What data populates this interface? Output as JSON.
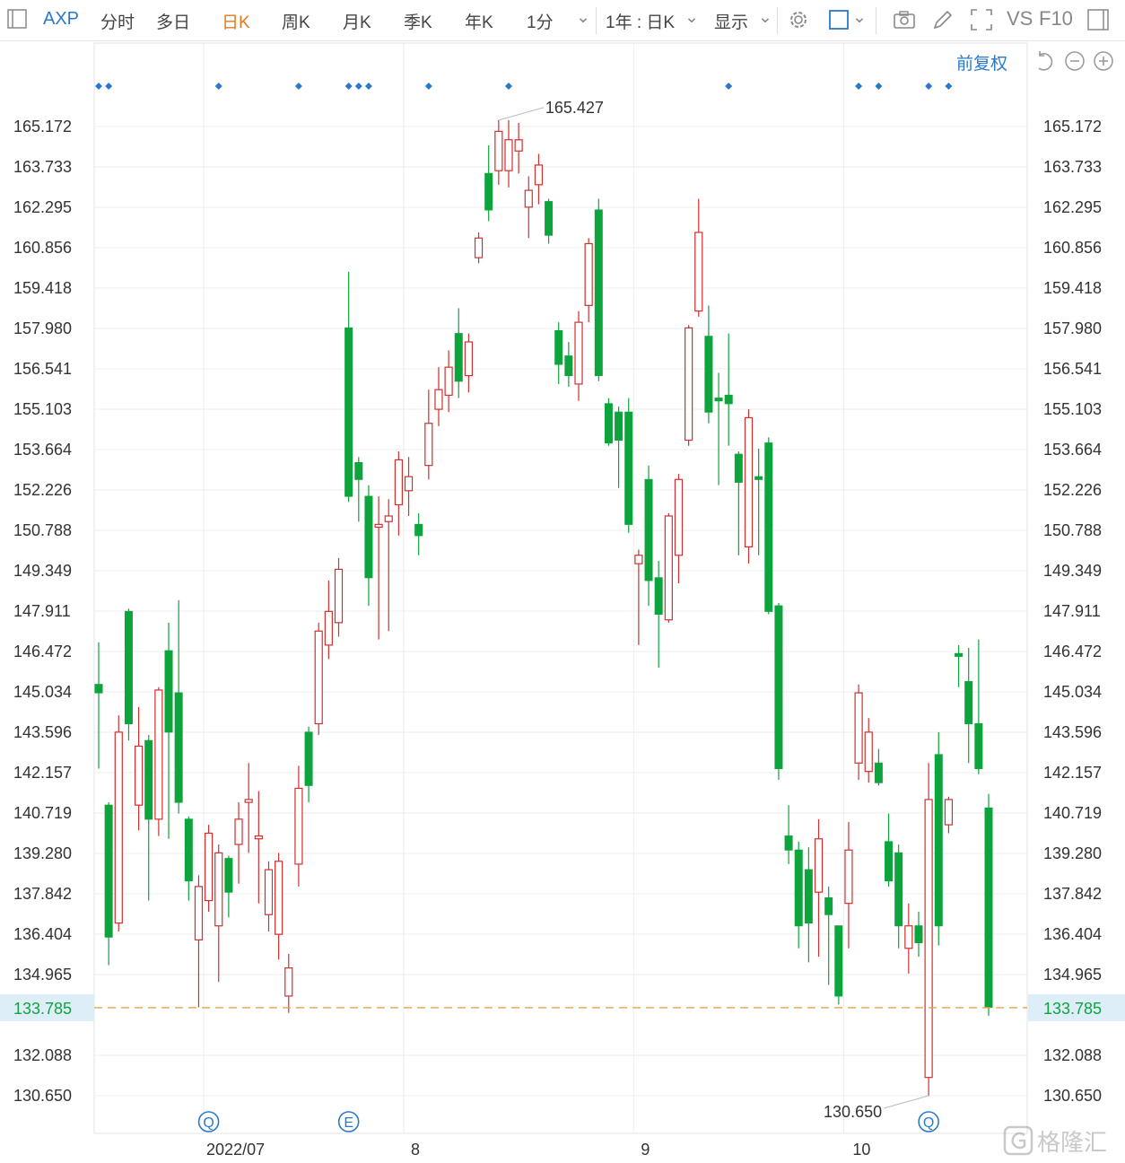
{
  "toolbar": {
    "symbol": "AXP",
    "tabs": [
      "分时",
      "多日",
      "日K",
      "周K",
      "月K",
      "季K",
      "年K",
      "1分"
    ],
    "active_tab": "日K",
    "range": "1年 : 日K",
    "display": "显示",
    "vs": "VS",
    "f10": "F10"
  },
  "adjust_label": "前复权",
  "colors": {
    "up": "#d0302f",
    "down": "#0ea43d",
    "price_line": "#e8a24c",
    "current_label": "#0ea43d",
    "current_bg": "#ddeef9",
    "accent": "#2a79c9"
  },
  "y_ticks": [
    "165.172",
    "163.733",
    "162.295",
    "160.856",
    "159.418",
    "157.980",
    "156.541",
    "155.103",
    "153.664",
    "152.226",
    "150.788",
    "149.349",
    "147.911",
    "146.472",
    "145.034",
    "143.596",
    "142.157",
    "140.719",
    "139.280",
    "137.842",
    "136.404",
    "134.965",
    "132.088",
    "130.650"
  ],
  "current_price": "133.785",
  "x_labels": [
    "2022/07",
    "8",
    "9",
    "10"
  ],
  "event_markers": [
    "Q",
    "E",
    "Q"
  ],
  "chart_data": {
    "type": "candlestick",
    "y_range": [
      130.65,
      165.172
    ],
    "high_label": "165.427",
    "low_label": "130.650",
    "candles": [
      {
        "o": 145.3,
        "c": 145.0,
        "h": 146.8,
        "l": 142.3
      },
      {
        "o": 141.0,
        "c": 136.3,
        "h": 141.1,
        "l": 135.3
      },
      {
        "o": 136.8,
        "c": 143.6,
        "h": 144.2,
        "l": 136.5
      },
      {
        "o": 147.9,
        "c": 143.9,
        "h": 148.0,
        "l": 143.3
      },
      {
        "o": 141.0,
        "c": 143.1,
        "h": 144.5,
        "l": 140.1
      },
      {
        "o": 143.3,
        "c": 140.5,
        "h": 143.5,
        "l": 137.6
      },
      {
        "o": 140.5,
        "c": 145.1,
        "h": 145.2,
        "l": 139.9
      },
      {
        "o": 146.5,
        "c": 143.6,
        "h": 147.5,
        "l": 139.8
      },
      {
        "o": 145.0,
        "c": 141.1,
        "h": 148.3,
        "l": 140.7
      },
      {
        "o": 140.5,
        "c": 138.3,
        "h": 140.6,
        "l": 137.6
      },
      {
        "o": 136.2,
        "c": 138.1,
        "h": 138.5,
        "l": 133.8
      },
      {
        "o": 137.6,
        "c": 140.0,
        "h": 140.3,
        "l": 137.2
      },
      {
        "o": 136.7,
        "c": 139.3,
        "h": 139.6,
        "l": 134.7
      },
      {
        "o": 139.1,
        "c": 137.9,
        "h": 139.2,
        "l": 137.0
      },
      {
        "o": 139.6,
        "c": 140.5,
        "h": 141.1,
        "l": 138.2
      },
      {
        "o": 141.1,
        "c": 141.2,
        "h": 142.5,
        "l": 139.3
      },
      {
        "o": 139.8,
        "c": 139.9,
        "h": 141.5,
        "l": 137.5
      },
      {
        "o": 137.1,
        "c": 138.7,
        "h": 139.0,
        "l": 136.5
      },
      {
        "o": 136.4,
        "c": 139.0,
        "h": 139.3,
        "l": 135.5
      },
      {
        "o": 134.2,
        "c": 135.2,
        "h": 135.7,
        "l": 133.6
      },
      {
        "o": 138.9,
        "c": 141.6,
        "h": 142.4,
        "l": 138.1
      },
      {
        "o": 143.6,
        "c": 141.7,
        "h": 143.8,
        "l": 141.1
      },
      {
        "o": 143.9,
        "c": 147.2,
        "h": 147.5,
        "l": 143.5
      },
      {
        "o": 146.7,
        "c": 147.9,
        "h": 149.0,
        "l": 146.2
      },
      {
        "o": 147.5,
        "c": 149.4,
        "h": 149.8,
        "l": 147.0
      },
      {
        "o": 158.0,
        "c": 152.0,
        "h": 160.0,
        "l": 151.8
      },
      {
        "o": 153.2,
        "c": 152.6,
        "h": 153.4,
        "l": 151.1
      },
      {
        "o": 152.0,
        "c": 149.1,
        "h": 152.4,
        "l": 148.1
      },
      {
        "o": 150.9,
        "c": 151.0,
        "h": 152.0,
        "l": 146.9
      },
      {
        "o": 151.1,
        "c": 151.3,
        "h": 151.9,
        "l": 147.2
      },
      {
        "o": 151.7,
        "c": 153.3,
        "h": 153.6,
        "l": 150.6
      },
      {
        "o": 152.2,
        "c": 152.7,
        "h": 153.4,
        "l": 151.3
      },
      {
        "o": 151.0,
        "c": 150.6,
        "h": 151.4,
        "l": 149.9
      },
      {
        "o": 153.1,
        "c": 154.6,
        "h": 155.8,
        "l": 152.6
      },
      {
        "o": 155.1,
        "c": 155.8,
        "h": 156.6,
        "l": 154.5
      },
      {
        "o": 155.6,
        "c": 156.6,
        "h": 157.2,
        "l": 155.0
      },
      {
        "o": 157.8,
        "c": 156.1,
        "h": 158.7,
        "l": 155.5
      },
      {
        "o": 156.3,
        "c": 157.5,
        "h": 157.8,
        "l": 155.7
      },
      {
        "o": 160.5,
        "c": 161.2,
        "h": 161.4,
        "l": 160.3
      },
      {
        "o": 163.5,
        "c": 162.2,
        "h": 164.5,
        "l": 161.8
      },
      {
        "o": 163.6,
        "c": 165.0,
        "h": 165.4,
        "l": 163.1
      },
      {
        "o": 163.6,
        "c": 164.7,
        "h": 165.4,
        "l": 163.0
      },
      {
        "o": 164.3,
        "c": 164.7,
        "h": 165.3,
        "l": 163.5
      },
      {
        "o": 162.3,
        "c": 162.9,
        "h": 163.4,
        "l": 161.2
      },
      {
        "o": 163.1,
        "c": 163.8,
        "h": 164.2,
        "l": 162.4
      },
      {
        "o": 162.5,
        "c": 161.3,
        "h": 162.6,
        "l": 161.0
      },
      {
        "o": 157.9,
        "c": 156.7,
        "h": 158.2,
        "l": 156.0
      },
      {
        "o": 157.0,
        "c": 156.3,
        "h": 157.5,
        "l": 155.9
      },
      {
        "o": 156.0,
        "c": 158.2,
        "h": 158.6,
        "l": 155.4
      },
      {
        "o": 158.8,
        "c": 161.0,
        "h": 161.2,
        "l": 158.2
      },
      {
        "o": 162.2,
        "c": 156.3,
        "h": 162.6,
        "l": 156.1
      },
      {
        "o": 155.3,
        "c": 153.9,
        "h": 155.5,
        "l": 153.8
      },
      {
        "o": 155.0,
        "c": 154.0,
        "h": 155.2,
        "l": 152.3
      },
      {
        "o": 155.0,
        "c": 151.0,
        "h": 155.5,
        "l": 150.7
      },
      {
        "o": 149.6,
        "c": 149.9,
        "h": 150.1,
        "l": 146.7
      },
      {
        "o": 152.6,
        "c": 149.0,
        "h": 153.1,
        "l": 148.1
      },
      {
        "o": 149.1,
        "c": 147.8,
        "h": 149.7,
        "l": 145.9
      },
      {
        "o": 147.6,
        "c": 151.3,
        "h": 151.4,
        "l": 147.5
      },
      {
        "o": 149.9,
        "c": 152.6,
        "h": 152.8,
        "l": 148.9
      },
      {
        "o": 154.0,
        "c": 158.0,
        "h": 158.1,
        "l": 153.8
      },
      {
        "o": 158.6,
        "c": 161.4,
        "h": 162.6,
        "l": 158.4
      },
      {
        "o": 157.7,
        "c": 155.0,
        "h": 158.8,
        "l": 154.6
      },
      {
        "o": 155.5,
        "c": 155.4,
        "h": 156.4,
        "l": 152.4
      },
      {
        "o": 155.6,
        "c": 155.3,
        "h": 157.8,
        "l": 153.8
      },
      {
        "o": 153.5,
        "c": 152.5,
        "h": 153.6,
        "l": 149.9
      },
      {
        "o": 150.2,
        "c": 154.8,
        "h": 155.1,
        "l": 149.6
      },
      {
        "o": 152.7,
        "c": 152.6,
        "h": 153.7,
        "l": 149.9
      },
      {
        "o": 153.9,
        "c": 147.9,
        "h": 154.1,
        "l": 147.8
      },
      {
        "o": 148.1,
        "c": 142.3,
        "h": 148.2,
        "l": 141.9
      },
      {
        "o": 139.9,
        "c": 139.4,
        "h": 141.0,
        "l": 138.9
      },
      {
        "o": 139.4,
        "c": 136.7,
        "h": 139.7,
        "l": 135.9
      },
      {
        "o": 138.7,
        "c": 136.8,
        "h": 139.5,
        "l": 135.4
      },
      {
        "o": 137.9,
        "c": 139.8,
        "h": 140.5,
        "l": 135.6
      },
      {
        "o": 137.7,
        "c": 137.1,
        "h": 138.1,
        "l": 134.6
      },
      {
        "o": 136.7,
        "c": 134.2,
        "h": 136.7,
        "l": 133.9
      },
      {
        "o": 137.5,
        "c": 139.4,
        "h": 140.4,
        "l": 135.9
      },
      {
        "o": 142.5,
        "c": 145.0,
        "h": 145.3,
        "l": 141.9
      },
      {
        "o": 142.2,
        "c": 143.6,
        "h": 144.1,
        "l": 141.8
      },
      {
        "o": 142.5,
        "c": 141.8,
        "h": 143.0,
        "l": 141.7
      },
      {
        "o": 139.7,
        "c": 138.3,
        "h": 140.7,
        "l": 138.1
      },
      {
        "o": 139.3,
        "c": 136.7,
        "h": 139.6,
        "l": 135.9
      },
      {
        "o": 135.9,
        "c": 136.7,
        "h": 137.5,
        "l": 135.0
      },
      {
        "o": 136.7,
        "c": 136.1,
        "h": 137.2,
        "l": 135.6
      },
      {
        "o": 131.3,
        "c": 141.2,
        "h": 142.5,
        "l": 130.65
      },
      {
        "o": 142.8,
        "c": 136.7,
        "h": 143.6,
        "l": 136.0
      },
      {
        "o": 140.3,
        "c": 141.2,
        "h": 141.3,
        "l": 140.0
      },
      {
        "o": 146.4,
        "c": 146.3,
        "h": 146.7,
        "l": 145.2
      },
      {
        "o": 145.4,
        "c": 143.9,
        "h": 146.6,
        "l": 142.5
      },
      {
        "o": 143.9,
        "c": 142.3,
        "h": 146.9,
        "l": 142.1
      },
      {
        "o": 140.9,
        "c": 133.8,
        "h": 141.4,
        "l": 133.5
      }
    ]
  }
}
